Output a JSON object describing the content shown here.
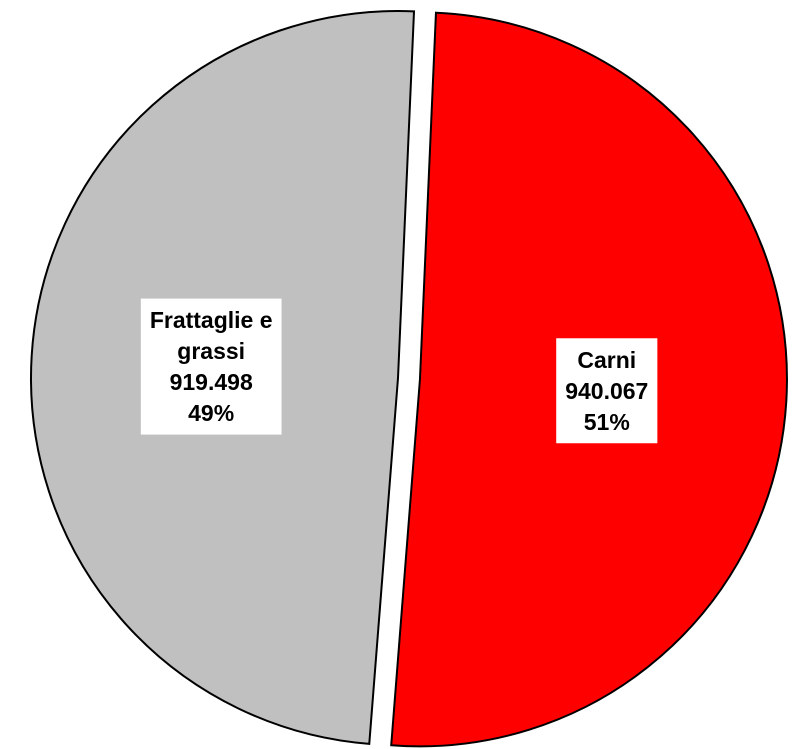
{
  "chart_data": {
    "type": "pie",
    "title": "",
    "slices": [
      {
        "name_lines": [
          "Carni"
        ],
        "value": 940067,
        "value_label": "940.067",
        "percent_label": "51%",
        "color": "#ff0000",
        "exploded": true
      },
      {
        "name_lines": [
          "Frattaglie e",
          "grassi"
        ],
        "value": 919498,
        "value_label": "919.498",
        "percent_label": "49%",
        "color": "#c0c0c0",
        "exploded": false
      }
    ]
  }
}
